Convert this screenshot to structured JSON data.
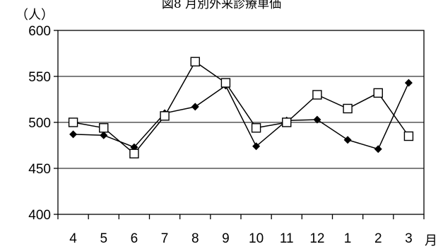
{
  "chart_data": {
    "type": "line",
    "title": "図8 月別外来診療単価",
    "ylabel": "（人）",
    "xlabel": "月",
    "categories": [
      "4",
      "5",
      "6",
      "7",
      "8",
      "9",
      "10",
      "11",
      "12",
      "1",
      "2",
      "3"
    ],
    "ylim": [
      400,
      600
    ],
    "yticks": [
      400,
      450,
      500,
      550,
      600
    ],
    "grid": true,
    "series": [
      {
        "marker": "filled-diamond",
        "color": "#000000",
        "values": [
          487,
          486,
          473,
          510,
          517,
          540,
          474,
          502,
          503,
          481,
          471,
          543
        ]
      },
      {
        "marker": "open-square",
        "color": "#000000",
        "values": [
          500,
          494,
          466,
          507,
          566,
          543,
          494,
          500,
          530,
          515,
          532,
          485
        ]
      }
    ]
  }
}
